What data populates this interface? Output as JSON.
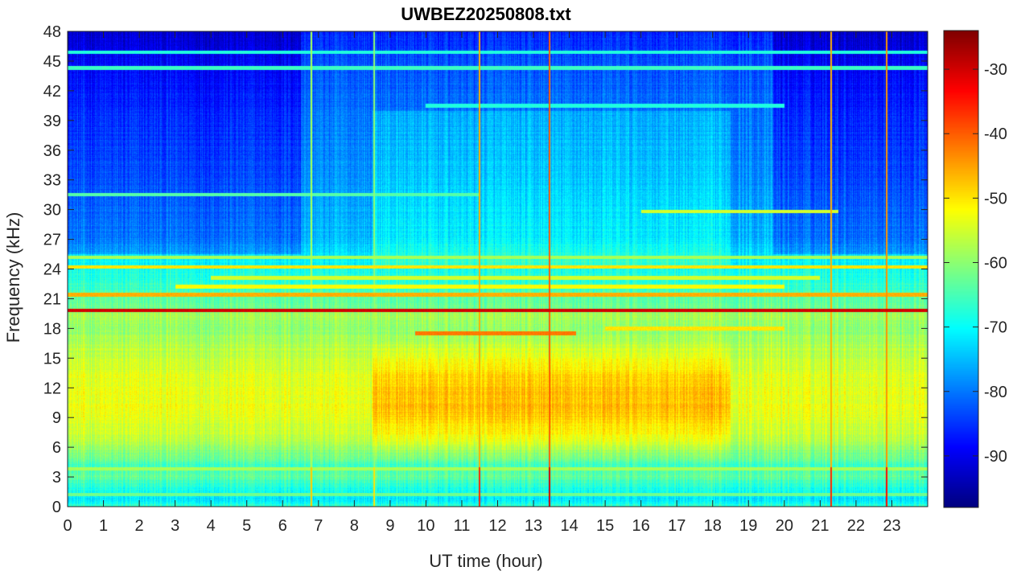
{
  "chart_data": {
    "type": "heatmap",
    "title": "UWBEZ20250808.txt",
    "xlabel": "UT time (hour)",
    "ylabel": "Frequency (kHz)",
    "xlim": [
      0,
      24
    ],
    "ylim": [
      0,
      48
    ],
    "x_ticks": [
      "0",
      "1",
      "2",
      "3",
      "4",
      "5",
      "6",
      "7",
      "8",
      "9",
      "10",
      "11",
      "12",
      "13",
      "14",
      "15",
      "16",
      "17",
      "18",
      "19",
      "20",
      "21",
      "22",
      "23"
    ],
    "y_ticks": [
      "0",
      "3",
      "6",
      "9",
      "12",
      "15",
      "18",
      "21",
      "24",
      "27",
      "30",
      "33",
      "36",
      "39",
      "42",
      "45",
      "48"
    ],
    "colormap": "jet",
    "colorbar": {
      "range": [
        -98,
        -24
      ],
      "ticks": [
        "-30",
        "-40",
        "-50",
        "-60",
        "-70",
        "-80",
        "-90"
      ]
    },
    "grid": false,
    "legend": "none",
    "z_profile_by_frequency": [
      {
        "freq": 0,
        "level": -66
      },
      {
        "freq": 0.6,
        "level": -72
      },
      {
        "freq": 2,
        "level": -68
      },
      {
        "freq": 3,
        "level": -63
      },
      {
        "freq": 4.2,
        "level": -66
      },
      {
        "freq": 5,
        "level": -62
      },
      {
        "freq": 7,
        "level": -56
      },
      {
        "freq": 10,
        "level": -53
      },
      {
        "freq": 13,
        "level": -54
      },
      {
        "freq": 16,
        "level": -57
      },
      {
        "freq": 18,
        "level": -60
      },
      {
        "freq": 19.4,
        "level": -58
      },
      {
        "freq": 20,
        "level": -62
      },
      {
        "freq": 22,
        "level": -66
      },
      {
        "freq": 24.5,
        "level": -70
      },
      {
        "freq": 27,
        "level": -75
      },
      {
        "freq": 33,
        "level": -78
      },
      {
        "freq": 39,
        "level": -80
      },
      {
        "freq": 45,
        "level": -83
      },
      {
        "freq": 48,
        "level": -86
      }
    ],
    "quiet_periods_high_freq": [
      {
        "t0": 0,
        "t1": 6.5,
        "level": -85
      },
      {
        "t0": 19.7,
        "t1": 24,
        "level": -85
      }
    ],
    "active_periods_low_freq": [
      {
        "t0": 8.5,
        "t1": 18.5,
        "level": -48
      }
    ],
    "narrowband_lines": [
      {
        "freq": 19.8,
        "t0": 0,
        "t1": 24,
        "level": -30
      },
      {
        "freq": 21.4,
        "t0": 0,
        "t1": 24,
        "level": -46
      },
      {
        "freq": 22.2,
        "t0": 3,
        "t1": 20,
        "level": -52
      },
      {
        "freq": 24.2,
        "t0": 0,
        "t1": 24,
        "level": -50
      },
      {
        "freq": 25.2,
        "t0": 0,
        "t1": 24,
        "level": -58
      },
      {
        "freq": 23.1,
        "t0": 4,
        "t1": 21,
        "level": -55
      },
      {
        "freq": 17.5,
        "t0": 9.7,
        "t1": 14.2,
        "level": -42
      },
      {
        "freq": 18.0,
        "t0": 15,
        "t1": 20,
        "level": -50
      },
      {
        "freq": 29.8,
        "t0": 16,
        "t1": 21.5,
        "level": -55
      },
      {
        "freq": 31.5,
        "t0": 0,
        "t1": 11.5,
        "level": -64
      },
      {
        "freq": 40.5,
        "t0": 10,
        "t1": 20,
        "level": -68
      },
      {
        "freq": 44.3,
        "t0": 0,
        "t1": 24,
        "level": -66
      },
      {
        "freq": 45.9,
        "t0": 0,
        "t1": 24,
        "level": -68
      },
      {
        "freq": 1.2,
        "t0": 0,
        "t1": 24,
        "level": -62
      },
      {
        "freq": 3.8,
        "t0": 0,
        "t1": 24,
        "level": -58
      }
    ],
    "broadband_spikes": [
      {
        "t": 11.5,
        "level": -46
      },
      {
        "t": 13.45,
        "level": -40
      },
      {
        "t": 21.3,
        "level": -46
      },
      {
        "t": 22.85,
        "level": -44
      },
      {
        "t": 6.8,
        "level": -58
      },
      {
        "t": 8.55,
        "level": -60
      }
    ]
  }
}
